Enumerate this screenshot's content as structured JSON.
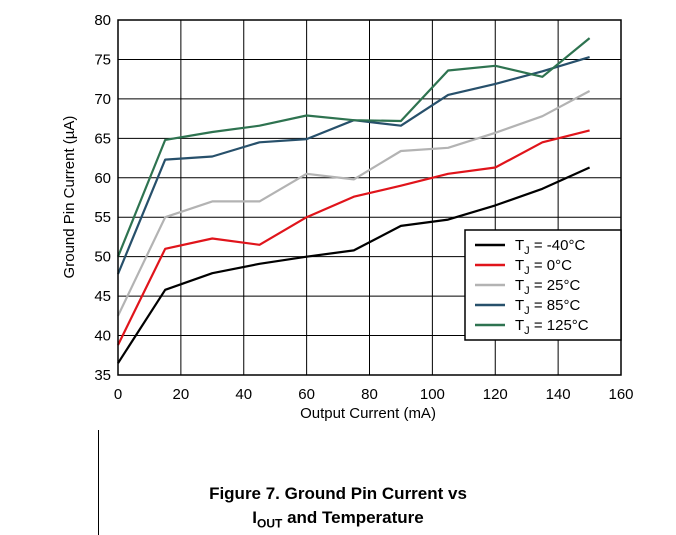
{
  "chart_data": {
    "type": "line",
    "xlabel": "Output Current (mA)",
    "ylabel": "Ground Pin Current (µA)",
    "xlim": [
      0,
      160
    ],
    "ylim": [
      35,
      80
    ],
    "xticks": [
      0,
      20,
      40,
      60,
      80,
      100,
      120,
      140,
      160
    ],
    "yticks": [
      35,
      40,
      45,
      50,
      55,
      60,
      65,
      70,
      75,
      80
    ],
    "grid": true,
    "legend_position": "bottom-right",
    "series": [
      {
        "name_main": "T",
        "name_sub": "J",
        "name_rest": " = -40°C",
        "color": "#000000",
        "x": [
          0,
          15,
          30,
          45,
          60,
          75,
          90,
          105,
          120,
          135,
          150
        ],
        "y": [
          36.5,
          45.8,
          47.9,
          49.1,
          50.0,
          50.8,
          53.9,
          54.7,
          56.5,
          58.6,
          61.3
        ]
      },
      {
        "name_main": "T",
        "name_sub": "J",
        "name_rest": " = 0°C",
        "color": "#e0141b",
        "x": [
          0,
          15,
          30,
          45,
          60,
          75,
          90,
          105,
          120,
          135,
          150
        ],
        "y": [
          38.8,
          51.0,
          52.3,
          51.5,
          55.0,
          57.6,
          59.0,
          60.5,
          61.3,
          64.5,
          66.0
        ]
      },
      {
        "name_main": "T",
        "name_sub": "J",
        "name_rest": " = 25°C",
        "color": "#b3b3b3",
        "x": [
          0,
          15,
          30,
          45,
          60,
          75,
          90,
          105,
          120,
          135,
          150
        ],
        "y": [
          42.5,
          55.0,
          57.0,
          57.0,
          60.5,
          59.8,
          63.4,
          63.8,
          65.7,
          67.8,
          71.0
        ]
      },
      {
        "name_main": "T",
        "name_sub": "J",
        "name_rest": " = 85°C",
        "color": "#27506b",
        "x": [
          0,
          15,
          30,
          45,
          60,
          75,
          90,
          105,
          120,
          135,
          150
        ],
        "y": [
          47.8,
          62.3,
          62.7,
          64.5,
          64.9,
          67.3,
          66.6,
          70.5,
          71.9,
          73.5,
          75.3
        ]
      },
      {
        "name_main": "T",
        "name_sub": "J",
        "name_rest": " = 125°C",
        "color": "#2e7350",
        "x": [
          0,
          15,
          30,
          45,
          60,
          75,
          90,
          105,
          120,
          135,
          150
        ],
        "y": [
          50.0,
          64.8,
          65.8,
          66.6,
          67.9,
          67.3,
          67.2,
          73.6,
          74.2,
          72.8,
          77.7
        ]
      }
    ]
  },
  "caption": {
    "line1": "Figure 7. Ground Pin Current vs",
    "line2_main": "I",
    "line2_sub": "OUT",
    "line2_rest": " and Temperature"
  }
}
